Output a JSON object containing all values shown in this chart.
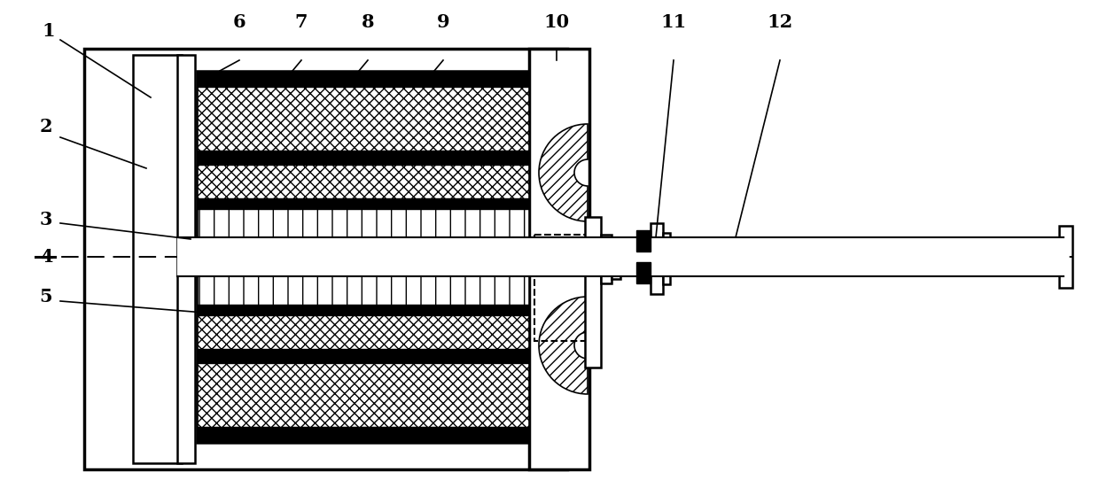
{
  "bg_color": "#ffffff",
  "line_color": "#000000",
  "figsize": [
    12.4,
    5.68
  ],
  "dpi": 100
}
